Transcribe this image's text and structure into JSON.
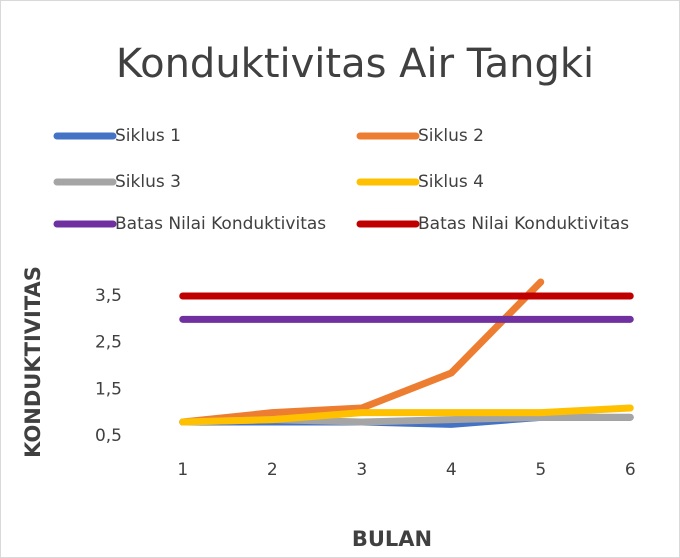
{
  "chart_data": {
    "type": "line",
    "title": "Konduktivitas Air Tangki",
    "x_label": "BULAN",
    "y_label": "KONDUKTIVITAS",
    "categories": [
      "1",
      "2",
      "3",
      "4",
      "5",
      "6"
    ],
    "series": [
      {
        "name": "Siklus 1",
        "color": "#4472c4",
        "values": [
          0.8,
          0.8,
          0.8,
          0.75,
          0.9,
          0.9
        ]
      },
      {
        "name": "Siklus 2",
        "color": "#ed7d31",
        "values": [
          0.8,
          1.0,
          1.1,
          1.85,
          3.8,
          null
        ]
      },
      {
        "name": "Siklus 3",
        "color": "#a5a5a5",
        "values": [
          0.8,
          0.85,
          0.8,
          0.85,
          0.9,
          0.9
        ]
      },
      {
        "name": "Siklus 4",
        "color": "#ffc000",
        "values": [
          0.8,
          0.85,
          1.0,
          1.0,
          1.0,
          1.1
        ]
      },
      {
        "name": "Batas Nilai Konduktivitas",
        "color": "#7030a0",
        "values": [
          3.0,
          3.0,
          3.0,
          3.0,
          3.0,
          3.0
        ]
      },
      {
        "name": "Batas Nilai Konduktivitas",
        "color": "#c00000",
        "values": [
          3.5,
          3.5,
          3.5,
          3.5,
          3.5,
          3.5
        ]
      }
    ],
    "ylim": [
      0.5,
      3.8
    ],
    "yticks": [
      {
        "value": 0.5,
        "label": "0,5"
      },
      {
        "value": 1.5,
        "label": "1,5"
      },
      {
        "value": 2.5,
        "label": "2,5"
      },
      {
        "value": 3.5,
        "label": "3,5"
      }
    ],
    "grid": false,
    "legend": "top"
  }
}
